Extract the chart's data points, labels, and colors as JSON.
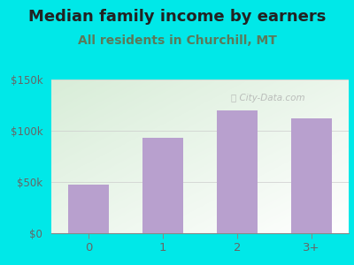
{
  "title": "Median family income by earners",
  "subtitle": "All residents in Churchill, MT",
  "categories": [
    "0",
    "1",
    "2",
    "3+"
  ],
  "values": [
    47000,
    93000,
    120000,
    112000
  ],
  "bar_color": "#b8a0ce",
  "background_color": "#00e8e8",
  "plot_bg_top_left": "#d8edd8",
  "plot_bg_bottom_right": "#ffffff",
  "title_color": "#222222",
  "subtitle_color": "#5a7a5a",
  "tick_label_color": "#666666",
  "ylim": [
    0,
    150000
  ],
  "yticks": [
    0,
    50000,
    100000,
    150000
  ],
  "ytick_labels": [
    "$0",
    "$50k",
    "$100k",
    "$150k"
  ],
  "title_fontsize": 13,
  "subtitle_fontsize": 10,
  "watermark": "Ⓣ City-Data.com"
}
